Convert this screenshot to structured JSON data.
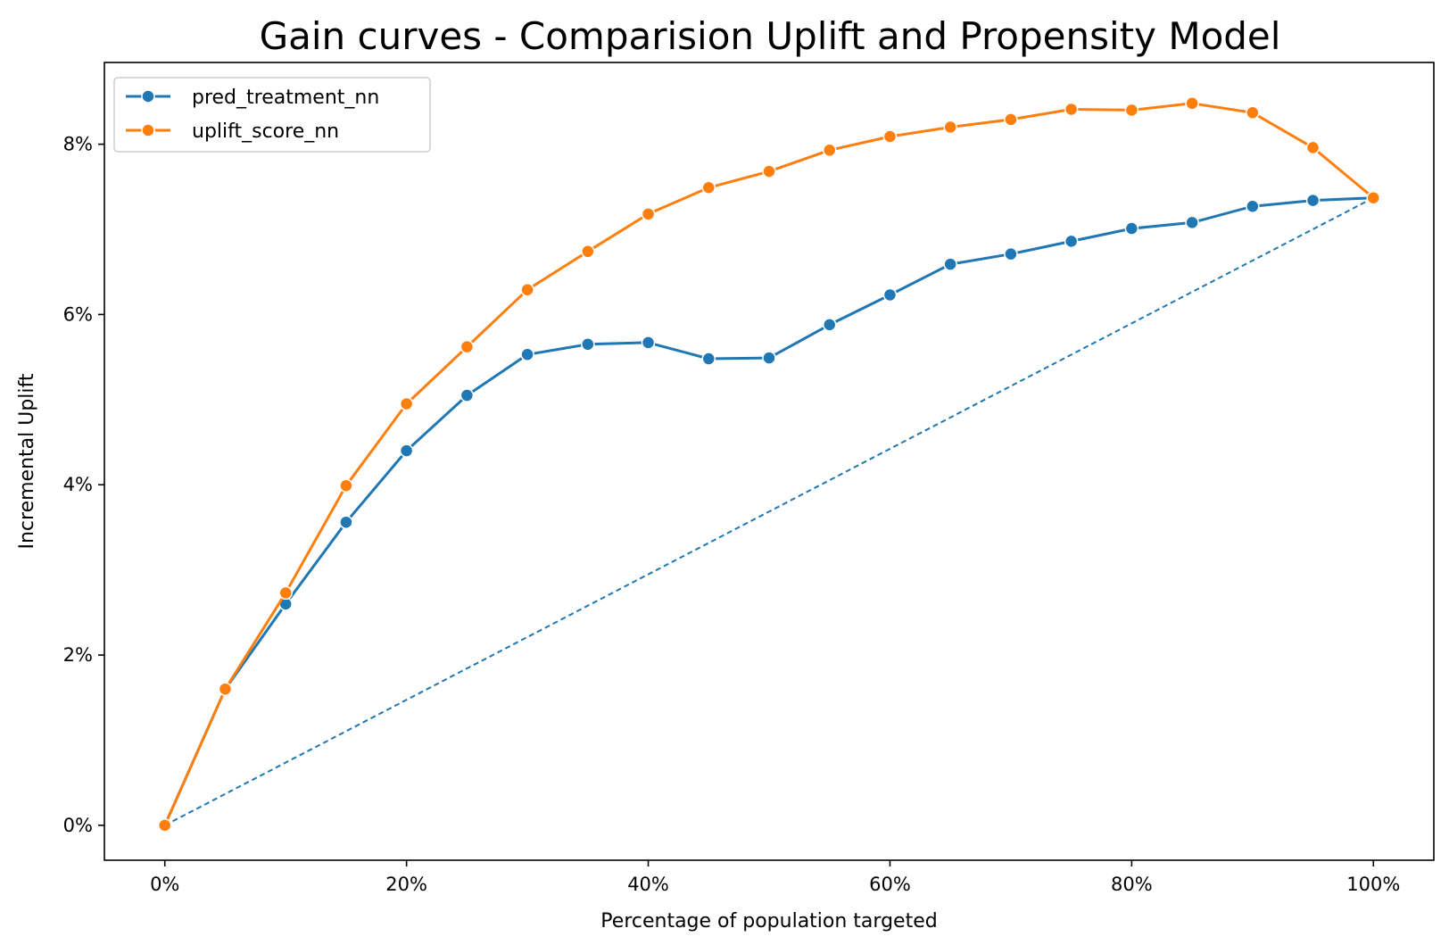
{
  "chart_data": {
    "type": "line",
    "title": "Gain curves - Comparision Uplift and Propensity Model",
    "xlabel": "Percentage of population targeted",
    "ylabel": "Incremental Uplift",
    "xlim": [
      -0.05,
      1.05
    ],
    "ylim": [
      -0.0041,
      0.0896
    ],
    "xticks": [
      0,
      0.2,
      0.4,
      0.6,
      0.8,
      1.0
    ],
    "xtick_labels": [
      "0%",
      "20%",
      "40%",
      "60%",
      "80%",
      "100%"
    ],
    "yticks": [
      0,
      0.02,
      0.04,
      0.06,
      0.08
    ],
    "ytick_labels": [
      "0%",
      "2%",
      "4%",
      "6%",
      "8%"
    ],
    "grid": false,
    "legend_position": "top-left",
    "x": [
      0,
      0.05,
      0.1,
      0.15,
      0.2,
      0.25,
      0.3,
      0.35,
      0.4,
      0.45,
      0.5,
      0.55,
      0.6,
      0.65,
      0.7,
      0.75,
      0.8,
      0.85,
      0.9,
      0.95,
      1.0
    ],
    "series": [
      {
        "name": "pred_treatment_nn",
        "color": "#1f77b4",
        "marker": "circle",
        "values": [
          0.0,
          0.016,
          0.026,
          0.0356,
          0.044,
          0.0505,
          0.0553,
          0.0565,
          0.0567,
          0.0548,
          0.0549,
          0.0588,
          0.0623,
          0.0659,
          0.0671,
          0.0686,
          0.0701,
          0.0708,
          0.0727,
          0.0734,
          0.0737
        ]
      },
      {
        "name": "uplift_score_nn",
        "color": "#ff7f0e",
        "marker": "circle",
        "values": [
          0.0,
          0.016,
          0.0273,
          0.0399,
          0.0495,
          0.0562,
          0.0629,
          0.0674,
          0.0718,
          0.0749,
          0.0768,
          0.0793,
          0.0809,
          0.082,
          0.0829,
          0.0841,
          0.084,
          0.0848,
          0.0837,
          0.0796,
          0.0737
        ]
      }
    ],
    "reference_line": {
      "style": "dashed",
      "color": "#1f77b4",
      "x": [
        0,
        1.0
      ],
      "y": [
        0,
        0.0737
      ]
    }
  }
}
